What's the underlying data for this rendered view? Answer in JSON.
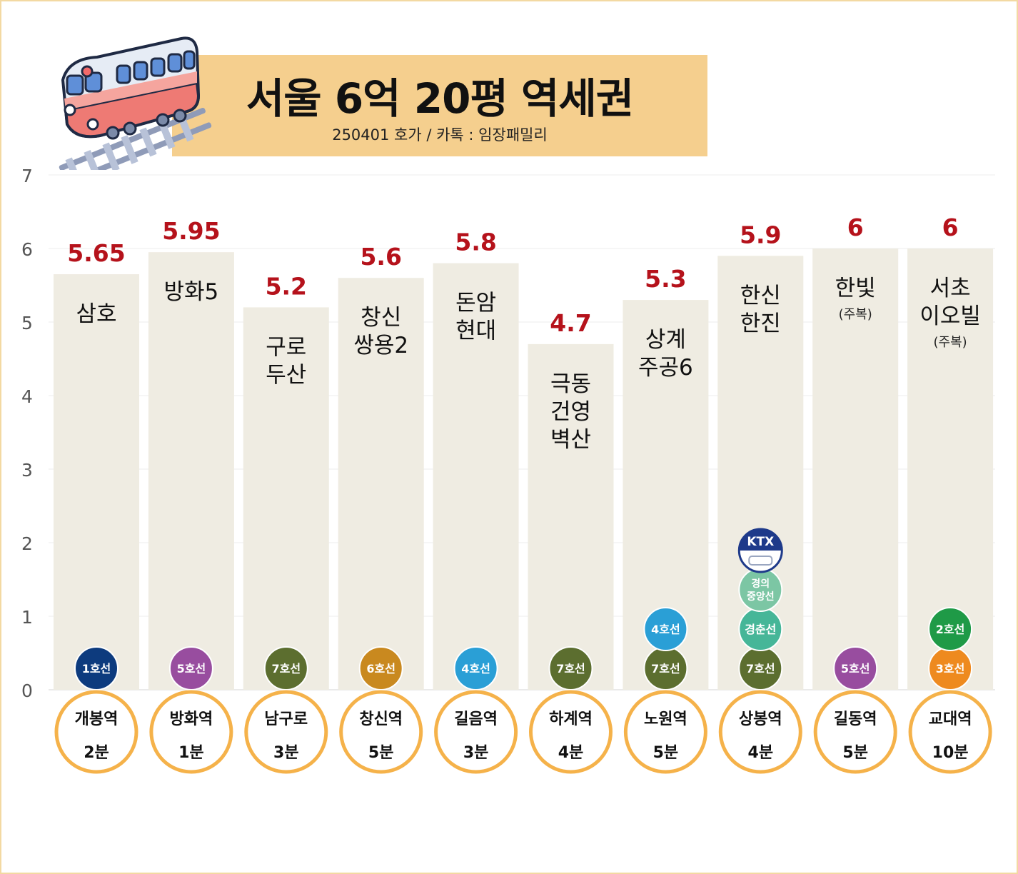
{
  "header": {
    "title": "서울 6억 20평 역세권",
    "subtitle": "250401 호가 / 카톡 : 임장패밀리"
  },
  "icons": {
    "train": "train-icon"
  },
  "colors": {
    "bar": "#efece2",
    "value_label": "#b5121b",
    "station_ring": "#f5b24a",
    "line1": "#0d3b7e",
    "line2": "#1f9a47",
    "line3": "#ee8a1f",
    "line4": "#2a9fd6",
    "line5": "#984d9f",
    "line6": "#c9891f",
    "line7": "#5c6e2f",
    "gyeongui": "#7cc6a4",
    "gyeongchun": "#46b698",
    "ktx": "#1e3a8a"
  },
  "chart_data": {
    "type": "bar",
    "ylim": [
      0,
      7
    ],
    "yticks": [
      "0",
      "1",
      "2",
      "3",
      "4",
      "5",
      "6",
      "7"
    ],
    "grid": true,
    "categories": [
      "삼호",
      "방화5",
      "구로 두산",
      "창신 쌍용2",
      "돈암 현대",
      "극동 건영 벽산",
      "상계 주공6",
      "한신 한진",
      "한빛",
      "서초 이오빌"
    ],
    "values": [
      5.65,
      5.95,
      5.2,
      5.6,
      5.8,
      4.7,
      5.3,
      5.9,
      6,
      6
    ],
    "value_labels": [
      "5.65",
      "5.95",
      "5.2",
      "5.6",
      "5.8",
      "4.7",
      "5.3",
      "5.9",
      "6",
      "6"
    ],
    "bars": [
      {
        "name_lines": [
          "삼호"
        ],
        "note": "",
        "station": "개봉역",
        "walk": "2분",
        "lines": [
          {
            "label": "1호선",
            "color": "#0d3b7e"
          }
        ]
      },
      {
        "name_lines": [
          "방화5"
        ],
        "note": "",
        "station": "방화역",
        "walk": "1분",
        "lines": [
          {
            "label": "5호선",
            "color": "#984d9f"
          }
        ]
      },
      {
        "name_lines": [
          "구로",
          "두산"
        ],
        "note": "",
        "station": "남구로",
        "walk": "3분",
        "lines": [
          {
            "label": "7호선",
            "color": "#5c6e2f"
          }
        ]
      },
      {
        "name_lines": [
          "창신",
          "쌍용2"
        ],
        "note": "",
        "station": "창신역",
        "walk": "5분",
        "lines": [
          {
            "label": "6호선",
            "color": "#c9891f"
          }
        ]
      },
      {
        "name_lines": [
          "돈암",
          "현대"
        ],
        "note": "",
        "station": "길음역",
        "walk": "3분",
        "lines": [
          {
            "label": "4호선",
            "color": "#2a9fd6"
          }
        ]
      },
      {
        "name_lines": [
          "극동",
          "건영",
          "벽산"
        ],
        "note": "",
        "station": "하계역",
        "walk": "4분",
        "lines": [
          {
            "label": "7호선",
            "color": "#5c6e2f"
          }
        ]
      },
      {
        "name_lines": [
          "상계",
          "주공6"
        ],
        "note": "",
        "station": "노원역",
        "walk": "5분",
        "lines": [
          {
            "label": "7호선",
            "color": "#5c6e2f"
          },
          {
            "label": "4호선",
            "color": "#2a9fd6"
          }
        ]
      },
      {
        "name_lines": [
          "한신",
          "한진"
        ],
        "note": "",
        "station": "상봉역",
        "walk": "4분",
        "lines": [
          {
            "label": "7호선",
            "color": "#5c6e2f"
          },
          {
            "label": "경춘선",
            "color": "#46b698"
          },
          {
            "label": "경의\n중앙선",
            "color": "#7cc6a4"
          },
          {
            "label": "KTX",
            "color": "#1e3a8a",
            "ktx": true
          }
        ]
      },
      {
        "name_lines": [
          "한빛"
        ],
        "note": "(주복)",
        "station": "길동역",
        "walk": "5분",
        "lines": [
          {
            "label": "5호선",
            "color": "#984d9f"
          }
        ]
      },
      {
        "name_lines": [
          "서초",
          "이오빌"
        ],
        "note": "(주복)",
        "station": "교대역",
        "walk": "10분",
        "lines": [
          {
            "label": "3호선",
            "color": "#ee8a1f"
          },
          {
            "label": "2호선",
            "color": "#1f9a47"
          }
        ]
      }
    ]
  }
}
